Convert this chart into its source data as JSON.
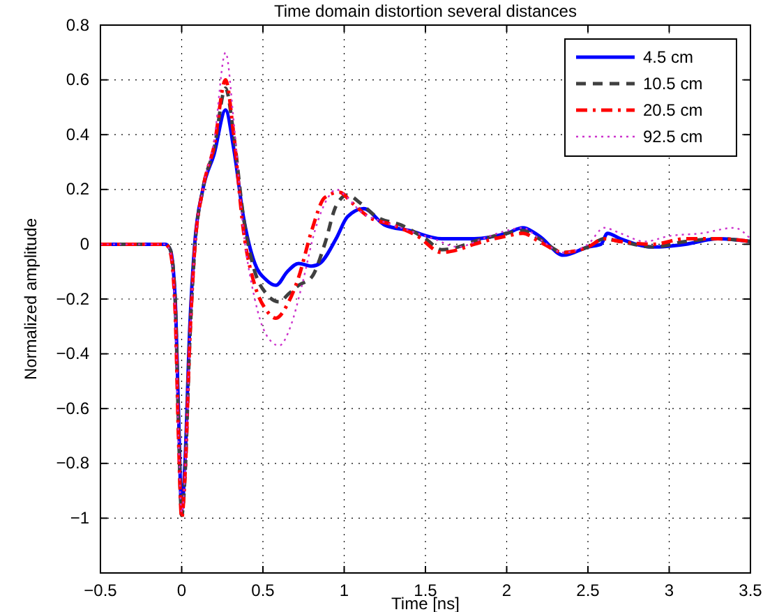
{
  "chart_data": {
    "type": "line",
    "title": "Time domain distortion several distances",
    "xlabel": "Time [ns]",
    "ylabel": "Normalized amplitude",
    "xlim": [
      -0.5,
      3.5
    ],
    "xticks": [
      -0.5,
      0,
      0.5,
      1,
      1.5,
      2,
      2.5,
      3,
      3.5
    ],
    "ylim": [
      -1.2,
      0.8
    ],
    "yticks": [
      -1,
      -0.8,
      -0.6,
      -0.4,
      -0.2,
      0,
      0.2,
      0.4,
      0.6,
      0.8
    ],
    "grid": true,
    "legend": "top right",
    "series": [
      {
        "name": "4.5 cm",
        "color": "#0000ff",
        "line_style": "solid",
        "x": [
          -0.5,
          -0.1,
          -0.07,
          -0.04,
          -0.02,
          0,
          0.02,
          0.05,
          0.08,
          0.13,
          0.2,
          0.27,
          0.32,
          0.38,
          0.45,
          0.52,
          0.58,
          0.65,
          0.72,
          0.8,
          0.85,
          0.95,
          1.02,
          1.12,
          1.25,
          1.4,
          1.6,
          1.8,
          2.0,
          2.1,
          2.2,
          2.35,
          2.5,
          2.58,
          2.62,
          2.7,
          2.9,
          3.1,
          3.3,
          3.5
        ],
        "values": [
          0,
          0,
          -0.02,
          -0.2,
          -0.6,
          -0.97,
          -0.8,
          -0.3,
          0,
          0.2,
          0.33,
          0.49,
          0.35,
          0.1,
          -0.07,
          -0.13,
          -0.15,
          -0.1,
          -0.07,
          -0.08,
          -0.07,
          0.02,
          0.1,
          0.13,
          0.07,
          0.05,
          0.02,
          0.02,
          0.04,
          0.06,
          0.03,
          -0.04,
          -0.01,
          0,
          0.04,
          0.02,
          -0.01,
          0,
          0.02,
          0.01
        ]
      },
      {
        "name": "10.5 cm",
        "color": "#404040",
        "line_style": "dashed",
        "x": [
          -0.5,
          -0.1,
          -0.07,
          -0.04,
          -0.02,
          0,
          0.02,
          0.05,
          0.08,
          0.13,
          0.2,
          0.27,
          0.32,
          0.38,
          0.45,
          0.52,
          0.6,
          0.66,
          0.72,
          0.8,
          0.88,
          0.95,
          1.02,
          1.1,
          1.2,
          1.35,
          1.5,
          1.6,
          1.7,
          1.8,
          2.0,
          2.1,
          2.2,
          2.35,
          2.5,
          2.6,
          2.7,
          2.9,
          3.1,
          3.3,
          3.5
        ],
        "values": [
          0,
          0,
          -0.02,
          -0.2,
          -0.65,
          -0.99,
          -0.85,
          -0.35,
          -0.02,
          0.2,
          0.35,
          0.57,
          0.4,
          0.1,
          -0.1,
          -0.18,
          -0.21,
          -0.18,
          -0.15,
          -0.12,
          0,
          0.14,
          0.18,
          0.15,
          0.1,
          0.07,
          0.02,
          -0.02,
          -0.01,
          0.01,
          0.04,
          0.05,
          0.02,
          -0.03,
          -0.01,
          0.02,
          0.01,
          -0.01,
          0.01,
          0.02,
          0.01
        ]
      },
      {
        "name": "20.5 cm",
        "color": "#ff0000",
        "line_style": "dashdot",
        "x": [
          -0.5,
          -0.1,
          -0.07,
          -0.04,
          -0.02,
          0,
          0.02,
          0.05,
          0.08,
          0.13,
          0.2,
          0.27,
          0.32,
          0.38,
          0.45,
          0.52,
          0.58,
          0.65,
          0.72,
          0.8,
          0.88,
          0.97,
          1.05,
          1.15,
          1.3,
          1.45,
          1.6,
          1.7,
          1.8,
          2.0,
          2.1,
          2.2,
          2.35,
          2.5,
          2.6,
          2.7,
          2.9,
          3.1,
          3.3,
          3.5
        ],
        "values": [
          0,
          0,
          -0.03,
          -0.25,
          -0.7,
          -1,
          -0.85,
          -0.35,
          -0.02,
          0.2,
          0.36,
          0.6,
          0.4,
          0.05,
          -0.15,
          -0.24,
          -0.27,
          -0.22,
          -0.12,
          0.05,
          0.17,
          0.19,
          0.15,
          0.1,
          0.07,
          0.03,
          -0.03,
          -0.02,
          0,
          0.03,
          0.04,
          0.01,
          -0.03,
          -0.01,
          0.02,
          0.01,
          0,
          0.02,
          0.02,
          0.01
        ]
      },
      {
        "name": "92.5 cm",
        "color": "#cc33cc",
        "line_style": "dotted",
        "x": [
          -0.5,
          -0.1,
          -0.07,
          -0.04,
          -0.02,
          0,
          0.02,
          0.05,
          0.08,
          0.13,
          0.2,
          0.27,
          0.32,
          0.38,
          0.45,
          0.52,
          0.6,
          0.67,
          0.74,
          0.82,
          0.9,
          0.95,
          1.02,
          1.1,
          1.25,
          1.4,
          1.55,
          1.7,
          1.85,
          2.0,
          2.1,
          2.2,
          2.35,
          2.5,
          2.6,
          2.7,
          2.85,
          3.0,
          3.2,
          3.4,
          3.5
        ],
        "values": [
          0,
          0,
          -0.03,
          -0.25,
          -0.7,
          -0.98,
          -0.85,
          -0.35,
          -0.02,
          0.2,
          0.38,
          0.7,
          0.45,
          0.05,
          -0.2,
          -0.33,
          -0.37,
          -0.3,
          -0.15,
          0.05,
          0.17,
          0.2,
          0.17,
          0.12,
          0.08,
          0.05,
          0.02,
          -0.01,
          0.02,
          0.05,
          0.06,
          0.02,
          -0.03,
          0,
          0.06,
          0.04,
          0.01,
          0.03,
          0.04,
          0.06,
          0.02
        ]
      }
    ]
  }
}
